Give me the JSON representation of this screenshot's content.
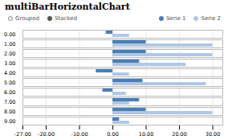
{
  "chart_data": {
    "type": "bar",
    "orientation": "horizontal",
    "title": "multiBarHorizontalChart",
    "annotations": [
      "Grouped",
      "Stacked"
    ],
    "categories": [
      "0.00",
      "1.00",
      "2.00",
      "3.00",
      "4.00",
      "5.00",
      "6.00",
      "7.00",
      "8.00",
      "9.00"
    ],
    "series": [
      {
        "name": "Serie 1",
        "color": "#4a7fb5",
        "values": [
          -2,
          10,
          10,
          8,
          -5,
          9,
          -3,
          8,
          10,
          2
        ]
      },
      {
        "name": "Serie 2",
        "color": "#aec7e8",
        "values": [
          5,
          30,
          30,
          22,
          5,
          28,
          4,
          5,
          30,
          5
        ]
      }
    ],
    "xlim": [
      -27,
      33
    ],
    "xticks": [
      {
        "value": -27,
        "label": "-27.00"
      },
      {
        "value": -20,
        "label": "-20.00"
      },
      {
        "value": -10,
        "label": "-10.00"
      },
      {
        "value": 0,
        "label": "0.00"
      },
      {
        "value": 10,
        "label": "10.00"
      },
      {
        "value": 20,
        "label": "20.00"
      },
      {
        "value": 30,
        "label": "30.00"
      }
    ],
    "grid": true,
    "legend": "top"
  }
}
